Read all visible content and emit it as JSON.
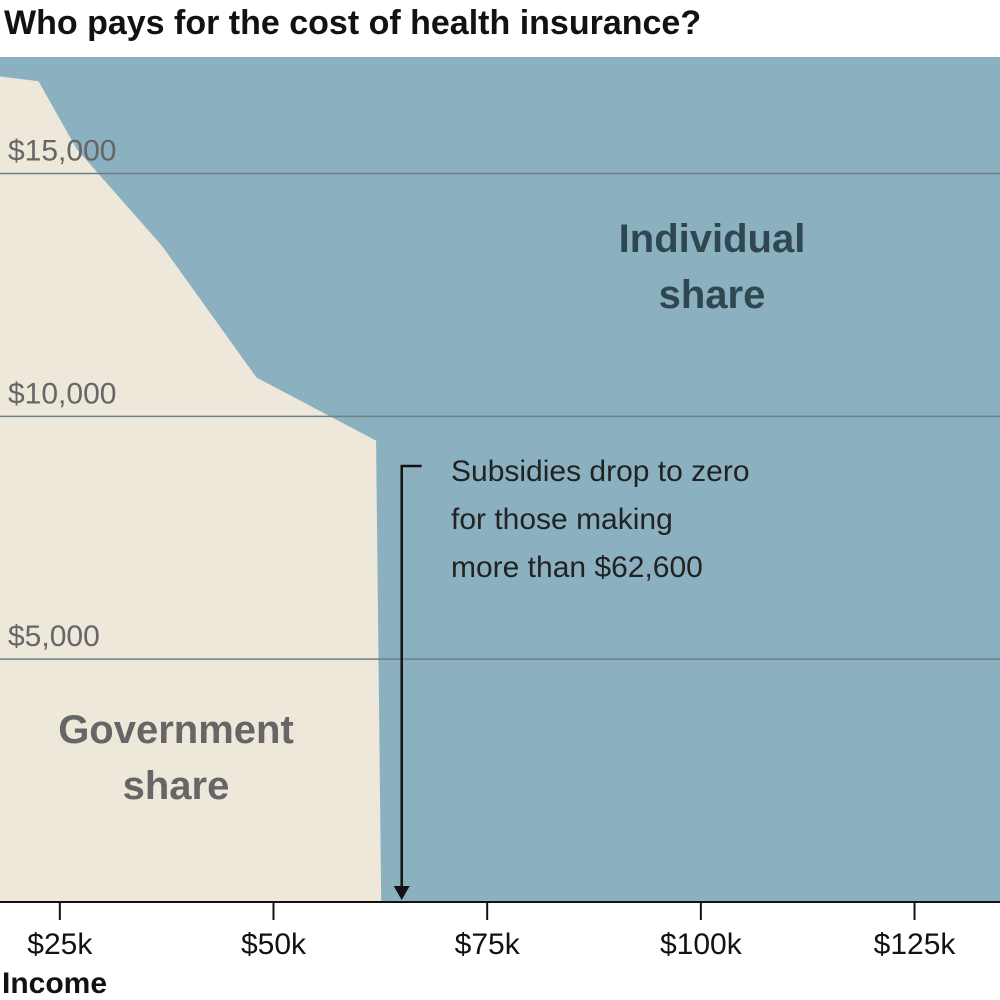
{
  "chart_data": {
    "type": "area",
    "title": "Who pays for the cost of health insurance?",
    "xlabel": "Income",
    "ylabel": "",
    "xlim": [
      18000,
      135000
    ],
    "ylim": [
      0,
      17400
    ],
    "total_cost": 17400,
    "x_ticks": [
      {
        "value": 25000,
        "label": "$25k"
      },
      {
        "value": 50000,
        "label": "$50k"
      },
      {
        "value": 75000,
        "label": "$75k"
      },
      {
        "value": 100000,
        "label": "$100k"
      },
      {
        "value": 125000,
        "label": "$125k"
      }
    ],
    "y_ticks": [
      {
        "value": 5000,
        "label": "$5,000"
      },
      {
        "value": 10000,
        "label": "$10,000"
      },
      {
        "value": 15000,
        "label": "$15,000"
      }
    ],
    "grid": true,
    "series": [
      {
        "name": "Government share",
        "color": "#ede8da",
        "label_color": "#666666",
        "x": [
          18000,
          22500,
          27000,
          37000,
          48000,
          62000,
          62600
        ],
        "y": [
          17000,
          16900,
          15500,
          13500,
          10800,
          9500,
          0
        ]
      },
      {
        "name": "Individual share",
        "color": "#8bb1c0",
        "label_color": "#2f4750",
        "x": [
          18000,
          135000
        ],
        "y": [
          17400,
          17400
        ]
      }
    ],
    "labels": {
      "government": [
        "Government",
        "share"
      ],
      "individual": [
        "Individual",
        "share"
      ]
    },
    "annotation": {
      "x": 65000,
      "lines": [
        "Subsidies drop to zero",
        "for those making",
        "more than $62,600"
      ]
    }
  }
}
